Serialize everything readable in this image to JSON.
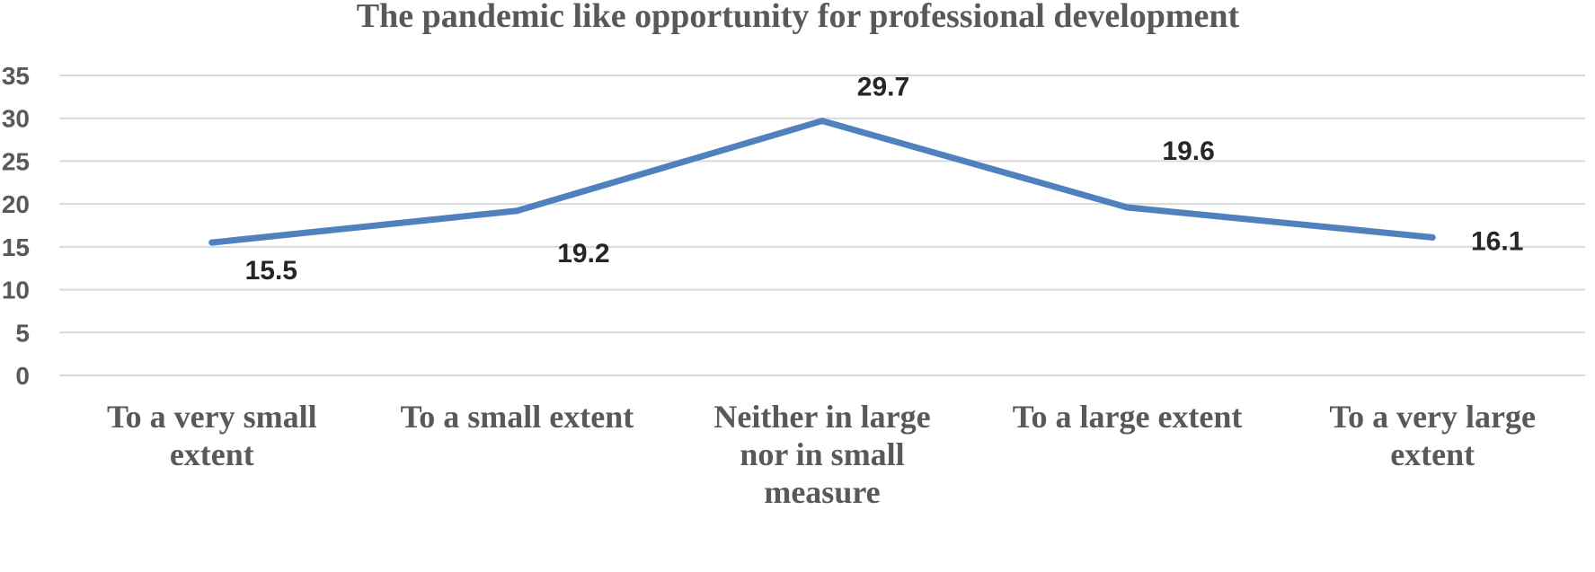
{
  "chart_data": {
    "type": "line",
    "title": "The pandemic like opportunity for professional development",
    "categories": [
      [
        "To a very small",
        "extent"
      ],
      [
        "To a small extent"
      ],
      [
        "Neither in large",
        "nor in small",
        "measure"
      ],
      [
        "To a large extent"
      ],
      [
        "To a very large",
        "extent"
      ]
    ],
    "series": [
      {
        "values": [
          15.5,
          19.2,
          29.7,
          19.6,
          16.1
        ],
        "color": "#4f81bd"
      }
    ],
    "data_labels": [
      "15.5",
      "19.2",
      "29.7",
      "19.6",
      "16.1"
    ],
    "ylim": [
      0,
      35
    ],
    "yticks": [
      "0",
      "5",
      "10",
      "15",
      "20",
      "25",
      "30",
      "35"
    ],
    "grid": true,
    "legend": "none"
  }
}
